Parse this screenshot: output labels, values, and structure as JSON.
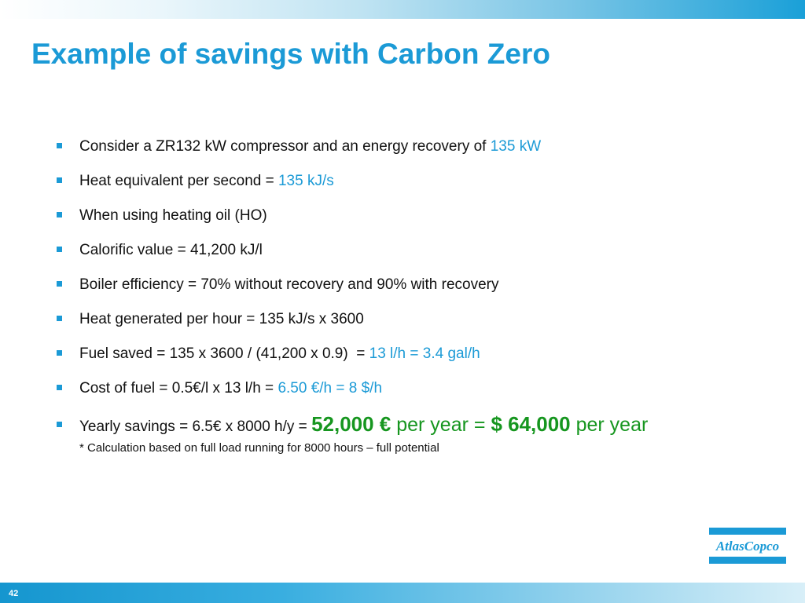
{
  "slide": {
    "title": "Example of savings with Carbon Zero",
    "page_number": "42"
  },
  "bullets": [
    {
      "text": "Consider a ZR132 kW compressor and an energy recovery of ",
      "highlight": "135 kW"
    },
    {
      "text": "Heat equivalent per second = ",
      "highlight": "135 kJ/s"
    },
    {
      "text": "When using heating oil (HO)"
    },
    {
      "text": "Calorific value = 41,200 kJ/l"
    },
    {
      "text": "Boiler efficiency = 70% without recovery and 90% with recovery"
    },
    {
      "text": "Heat generated per hour = 135 kJ/s x 3600"
    },
    {
      "text": "Fuel saved = 135 x 3600 / (41,200 x 0.9)  = ",
      "highlight": "13 l/h = 3.4 gal/h"
    },
    {
      "text": "Cost of fuel = 0.5€/l x 13 l/h = ",
      "highlight": "6.50 €/h = 8 $/h"
    }
  ],
  "yearly": {
    "text": "Yearly savings = 6.5€ x 8000 h/y = ",
    "value_eur": "52,000 €",
    "unit_1": " per year = ",
    "value_usd": "$ 64,000",
    "unit_2": " per year"
  },
  "footnote": "* Calculation based on full load running for 8000 hours – full potential",
  "logo": {
    "text": "AtlasCopco",
    "color": "#1b9ad6"
  },
  "colors": {
    "accent": "#1b9ad6",
    "green": "#16961f"
  }
}
